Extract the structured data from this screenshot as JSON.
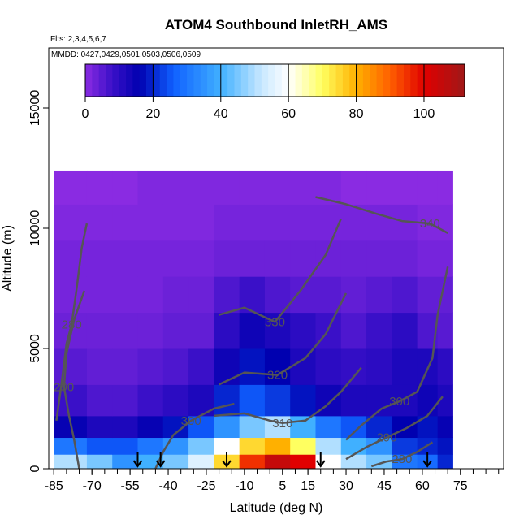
{
  "chart_data": {
    "type": "heatmap",
    "title": "ATOM4 Southbound InletRH_AMS",
    "flights_note": "Flts: 2,3,4,5,6,7",
    "dates_note": "MMDD: 0427,0429,0501,0503,0506,0509",
    "xlabel": "Latitude (deg N)",
    "ylabel": "Altitude (m)",
    "xlim": [
      -87,
      92
    ],
    "ylim": [
      0,
      17500
    ],
    "x_ticks": [
      -85,
      -70,
      -55,
      -40,
      -25,
      -10,
      5,
      15,
      30,
      45,
      60,
      75
    ],
    "y_ticks": [
      0,
      5000,
      10000,
      15000
    ],
    "colorbar": {
      "range": [
        0,
        112
      ],
      "ticks": [
        0,
        20,
        40,
        60,
        80,
        100
      ],
      "stops": [
        {
          "v": 0,
          "color": "#8a2be2"
        },
        {
          "v": 8,
          "color": "#3a10c8"
        },
        {
          "v": 16,
          "color": "#0000b0"
        },
        {
          "v": 26,
          "color": "#1060ff"
        },
        {
          "v": 40,
          "color": "#40b0ff"
        },
        {
          "v": 52,
          "color": "#c8e8ff"
        },
        {
          "v": 60,
          "color": "#ffffff"
        },
        {
          "v": 70,
          "color": "#ffff60"
        },
        {
          "v": 80,
          "color": "#ffb000"
        },
        {
          "v": 90,
          "color": "#ff6000"
        },
        {
          "v": 100,
          "color": "#e00000"
        },
        {
          "v": 112,
          "color": "#a01818"
        }
      ]
    },
    "rh_field": {
      "lat_edges": [
        -85,
        -72,
        -62,
        -52,
        -42,
        -32,
        -22,
        -12,
        -2,
        8,
        18,
        28,
        38,
        48,
        58,
        66,
        72
      ],
      "alt_edges": [
        0,
        600,
        1300,
        2200,
        3500,
        5000,
        6500,
        8000,
        9500,
        11000,
        12400
      ],
      "rows": [
        [
          50,
          45,
          35,
          40,
          45,
          55,
          75,
          95,
          105,
          100,
          60,
          50,
          45,
          30,
          28,
          20
        ],
        [
          30,
          25,
          25,
          30,
          35,
          45,
          60,
          75,
          80,
          70,
          50,
          40,
          35,
          22,
          20,
          18
        ],
        [
          15,
          12,
          12,
          15,
          18,
          25,
          35,
          45,
          50,
          40,
          30,
          25,
          20,
          16,
          18,
          15
        ],
        [
          8,
          6,
          6,
          8,
          10,
          12,
          20,
          25,
          22,
          18,
          14,
          12,
          12,
          12,
          14,
          12
        ],
        [
          5,
          4,
          4,
          5,
          6,
          8,
          14,
          18,
          16,
          12,
          10,
          9,
          10,
          12,
          12,
          10
        ],
        [
          3,
          3,
          3,
          3,
          4,
          4,
          10,
          14,
          12,
          10,
          8,
          6,
          8,
          10,
          6,
          5
        ],
        [
          2,
          2,
          2,
          2,
          3,
          3,
          6,
          8,
          6,
          5,
          5,
          4,
          5,
          6,
          4,
          4
        ],
        [
          2,
          2,
          2,
          2,
          2,
          2,
          3,
          3,
          3,
          3,
          3,
          3,
          3,
          3,
          2,
          2
        ],
        [
          1,
          1,
          1,
          1,
          1,
          1,
          2,
          2,
          2,
          2,
          2,
          2,
          2,
          2,
          1,
          1
        ],
        [
          0,
          0,
          0,
          1,
          1,
          1,
          1,
          1,
          1,
          1,
          1,
          0,
          0,
          0,
          0,
          0
        ]
      ]
    },
    "theta_contours": [
      {
        "label": "280",
        "label_pos": [
          -78,
          6000
        ],
        "points": [
          [
            -84,
            2000
          ],
          [
            -82,
            3500
          ],
          [
            -80,
            5200
          ],
          [
            -78,
            6000
          ],
          [
            -76,
            7500
          ],
          [
            -74,
            9200
          ],
          [
            -72,
            10200
          ]
        ]
      },
      {
        "label": "290",
        "label_pos": [
          -81,
          3400
        ],
        "points": [
          [
            -75,
            0
          ],
          [
            -77,
            1200
          ],
          [
            -79,
            2200
          ],
          [
            -81,
            3400
          ],
          [
            -80,
            4800
          ],
          [
            -77,
            6200
          ],
          [
            -73,
            7400
          ]
        ]
      },
      {
        "label": "300",
        "label_pos": [
          -31,
          2000
        ],
        "points": [
          [
            -45,
            0
          ],
          [
            -42,
            700
          ],
          [
            -38,
            1400
          ],
          [
            -31,
            2000
          ],
          [
            -22,
            2500
          ],
          [
            -14,
            2700
          ]
        ]
      },
      {
        "label": "310",
        "label_pos": [
          5,
          1900
        ],
        "points": [
          [
            -22,
            2200
          ],
          [
            -10,
            2300
          ],
          [
            0,
            2000
          ],
          [
            5,
            1900
          ],
          [
            14,
            2000
          ],
          [
            22,
            2600
          ],
          [
            28,
            3200
          ],
          [
            36,
            4200
          ]
        ]
      },
      {
        "label": "320",
        "label_pos": [
          3,
          3900
        ],
        "points": [
          [
            -20,
            3500
          ],
          [
            -10,
            4000
          ],
          [
            3,
            3900
          ],
          [
            14,
            4600
          ],
          [
            22,
            5600
          ],
          [
            30,
            7300
          ]
        ]
      },
      {
        "label": "330",
        "label_pos": [
          2,
          6100
        ],
        "points": [
          [
            -20,
            6400
          ],
          [
            -10,
            6700
          ],
          [
            2,
            6100
          ],
          [
            12,
            7400
          ],
          [
            22,
            8900
          ],
          [
            28,
            10400
          ]
        ]
      },
      {
        "label": "340",
        "label_pos": [
          63,
          10200
        ],
        "points": [
          [
            18,
            11300
          ],
          [
            30,
            11000
          ],
          [
            42,
            10600
          ],
          [
            52,
            10300
          ],
          [
            63,
            10200
          ],
          [
            70,
            9800
          ]
        ]
      },
      {
        "label": "300",
        "label_pos": [
          51,
          2800
        ],
        "points": [
          [
            30,
            1200
          ],
          [
            36,
            1800
          ],
          [
            44,
            2500
          ],
          [
            51,
            2800
          ],
          [
            58,
            3200
          ],
          [
            64,
            4600
          ],
          [
            66,
            6400
          ],
          [
            70,
            8400
          ]
        ]
      },
      {
        "label": "290",
        "label_pos": [
          46,
          1300
        ],
        "points": [
          [
            30,
            400
          ],
          [
            38,
            900
          ],
          [
            46,
            1300
          ],
          [
            54,
            1700
          ],
          [
            62,
            2200
          ],
          [
            68,
            3000
          ]
        ]
      },
      {
        "label": "280",
        "label_pos": [
          52,
          400
        ],
        "points": [
          [
            40,
            100
          ],
          [
            46,
            300
          ],
          [
            52,
            400
          ],
          [
            58,
            700
          ],
          [
            64,
            1100
          ]
        ]
      }
    ],
    "arrow_lats": [
      -52,
      -43,
      -17,
      20,
      62
    ]
  }
}
